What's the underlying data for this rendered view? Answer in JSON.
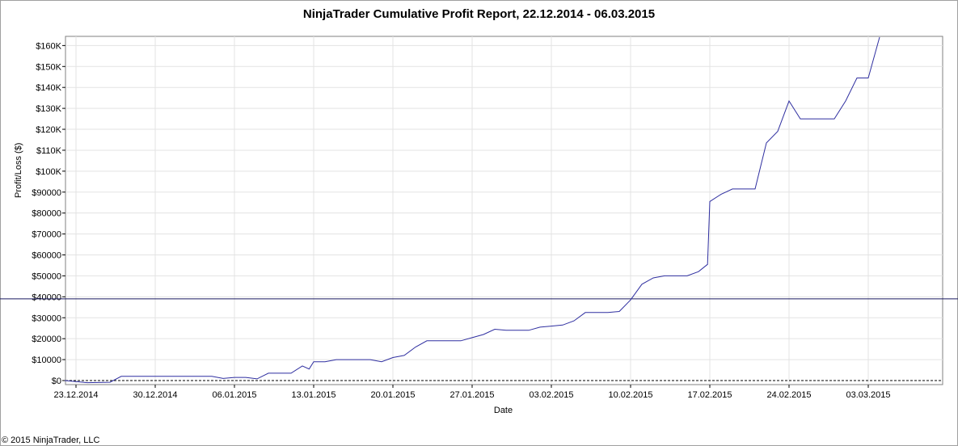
{
  "footer": {
    "copyright": "© 2015 NinjaTrader, LLC"
  },
  "chart_data": {
    "type": "line",
    "title": "NinjaTrader Cumulative Profit Report, 22.12.2014 - 06.03.2015",
    "xlabel": "Date",
    "ylabel": "Profit/Loss ($)",
    "ylim": [
      -1000,
      164000
    ],
    "grid": true,
    "x_ticks": [
      "23.12.2014",
      "30.12.2014",
      "06.01.2015",
      "13.01.2015",
      "20.01.2015",
      "27.01.2015",
      "03.02.2015",
      "10.02.2015",
      "17.02.2015",
      "24.02.2015",
      "03.03.2015"
    ],
    "y_ticks": [
      {
        "value": 0,
        "label": "$0"
      },
      {
        "value": 10000,
        "label": "$10000"
      },
      {
        "value": 20000,
        "label": "$20000"
      },
      {
        "value": 30000,
        "label": "$30000"
      },
      {
        "value": 40000,
        "label": "$40000"
      },
      {
        "value": 50000,
        "label": "$50000"
      },
      {
        "value": 60000,
        "label": "$60000"
      },
      {
        "value": 70000,
        "label": "$70000"
      },
      {
        "value": 80000,
        "label": "$80000"
      },
      {
        "value": 90000,
        "label": "$90000"
      },
      {
        "value": 100000,
        "label": "$100K"
      },
      {
        "value": 110000,
        "label": "$110K"
      },
      {
        "value": 120000,
        "label": "$120K"
      },
      {
        "value": 130000,
        "label": "$130K"
      },
      {
        "value": 140000,
        "label": "$140K"
      },
      {
        "value": 150000,
        "label": "$150K"
      },
      {
        "value": 160000,
        "label": "$160K"
      }
    ],
    "average_line": 39000,
    "zero_line": 0,
    "series": [
      {
        "color": "#2f2fa0",
        "points": [
          [
            "22.12.2014",
            0
          ],
          [
            "23.12.2014",
            -500
          ],
          [
            "24.12.2014",
            -1000
          ],
          [
            "26.12.2014",
            -800
          ],
          [
            "27.12.2014",
            2000
          ],
          [
            "28.12.2014",
            2000
          ],
          [
            "29.12.2014",
            2000
          ],
          [
            "30.12.2014",
            2000
          ],
          [
            "31.12.2014",
            2000
          ],
          [
            "01.01.2015",
            2000
          ],
          [
            "02.01.2015",
            2000
          ],
          [
            "03.01.2015",
            2000
          ],
          [
            "04.01.2015",
            2000
          ],
          [
            "05.01.2015",
            1000
          ],
          [
            "06.01.2015",
            1500
          ],
          [
            "07.01.2015",
            1500
          ],
          [
            "08.01.2015",
            800
          ],
          [
            "09.01.2015",
            3500
          ],
          [
            "10.01.2015",
            3500
          ],
          [
            "11.01.2015",
            3500
          ],
          [
            "12.01.2015",
            7000
          ],
          [
            "12.6.01.2015",
            5500
          ],
          [
            "13.01.2015",
            9000
          ],
          [
            "14.01.2015",
            9000
          ],
          [
            "15.01.2015",
            10000
          ],
          [
            "16.01.2015",
            10000
          ],
          [
            "18.01.2015",
            10000
          ],
          [
            "19.01.2015",
            9000
          ],
          [
            "20.01.2015",
            11000
          ],
          [
            "21.01.2015",
            12000
          ],
          [
            "22.01.2015",
            16000
          ],
          [
            "23.01.2015",
            19000
          ],
          [
            "24.01.2015",
            19000
          ],
          [
            "26.01.2015",
            19000
          ],
          [
            "27.01.2015",
            20500
          ],
          [
            "28.01.2015",
            22000
          ],
          [
            "29.01.2015",
            24500
          ],
          [
            "30.01.2015",
            24000
          ],
          [
            "31.01.2015",
            24000
          ],
          [
            "01.02.2015",
            24000
          ],
          [
            "02.02.2015",
            25500
          ],
          [
            "03.02.2015",
            26000
          ],
          [
            "04.02.2015",
            26500
          ],
          [
            "05.02.2015",
            28500
          ],
          [
            "06.02.2015",
            32500
          ],
          [
            "07.02.2015",
            32500
          ],
          [
            "08.02.2015",
            32500
          ],
          [
            "09.02.2015",
            33000
          ],
          [
            "10.02.2015",
            38500
          ],
          [
            "11.02.2015",
            46000
          ],
          [
            "12.02.2015",
            49000
          ],
          [
            "13.02.2015",
            50000
          ],
          [
            "14.02.2015",
            50000
          ],
          [
            "15.02.2015",
            50000
          ],
          [
            "16.02.2015",
            52000
          ],
          [
            "16.8.02.2015",
            55500
          ],
          [
            "17.02.2015",
            85500
          ],
          [
            "18.02.2015",
            89000
          ],
          [
            "19.02.2015",
            91500
          ],
          [
            "21.02.2015",
            91500
          ],
          [
            "22.02.2015",
            113500
          ],
          [
            "23.02.2015",
            119000
          ],
          [
            "24.02.2015",
            133500
          ],
          [
            "25.02.2015",
            125000
          ],
          [
            "26.02.2015",
            125000
          ],
          [
            "28.02.2015",
            125000
          ],
          [
            "01.03.2015",
            133500
          ],
          [
            "02.03.2015",
            144500
          ],
          [
            "03.03.2015",
            144500
          ],
          [
            "04.03.2015",
            164000
          ]
        ]
      }
    ]
  }
}
